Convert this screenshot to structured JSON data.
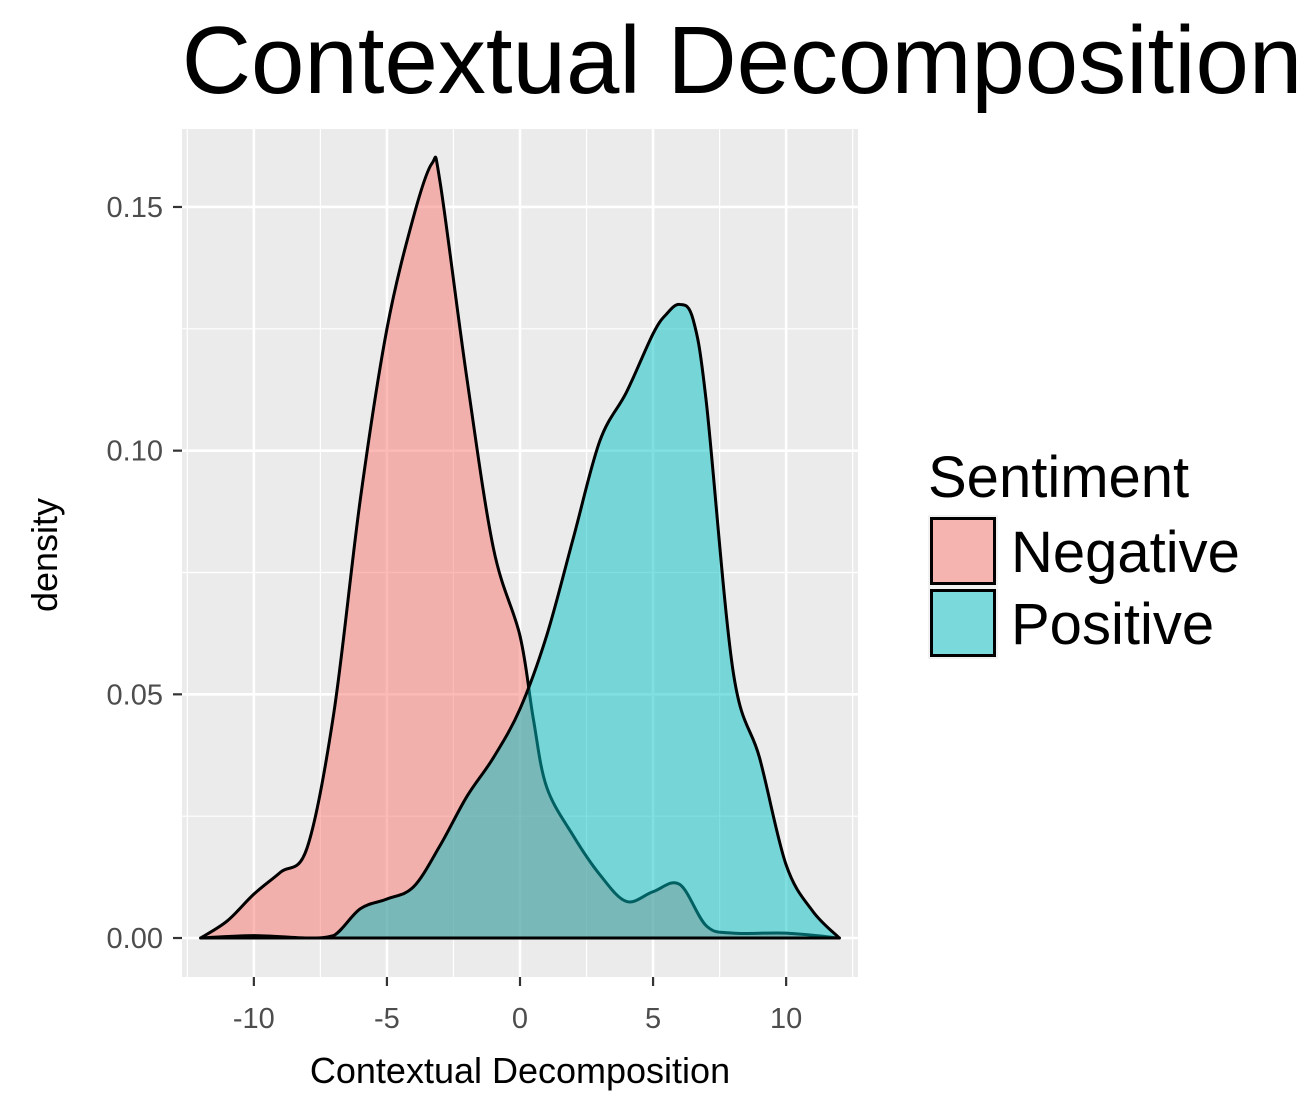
{
  "chart_data": {
    "type": "area",
    "title": "Contextual Decomposition",
    "xlabel": "Contextual Decomposition",
    "ylabel": "density",
    "xlim": [
      -12.7,
      12.7
    ],
    "ylim": [
      -0.008,
      0.166
    ],
    "x_ticks": [
      -10,
      -5,
      0,
      5,
      10
    ],
    "x_tick_labels": [
      "-10",
      "-5",
      "0",
      "5",
      "10"
    ],
    "y_ticks": [
      0.0,
      0.05,
      0.1,
      0.15
    ],
    "y_tick_labels": [
      "0.00",
      "0.05",
      "0.10",
      "0.15"
    ],
    "grid": true,
    "legend": {
      "title": "Sentiment",
      "position": "right"
    },
    "series": [
      {
        "name": "Negative",
        "color": "#F8766D",
        "x": [
          -12,
          -11,
          -10,
          -9,
          -8,
          -7,
          -6,
          -5,
          -4,
          -3.3,
          -3,
          -2,
          -1,
          0,
          0.5,
          1,
          2,
          3,
          4,
          5,
          6,
          7,
          8,
          10,
          12
        ],
        "y": [
          0.0,
          0.0035,
          0.009,
          0.0135,
          0.0185,
          0.046,
          0.09,
          0.125,
          0.148,
          0.159,
          0.155,
          0.115,
          0.08,
          0.062,
          0.045,
          0.031,
          0.021,
          0.013,
          0.0075,
          0.0095,
          0.011,
          0.0025,
          0.001,
          0.001,
          0.0
        ]
      },
      {
        "name": "Positive",
        "color": "#00BFC4",
        "x": [
          -12,
          -10,
          -8,
          -7,
          -6,
          -5,
          -4,
          -3,
          -2,
          -1,
          0,
          1,
          2,
          3,
          4,
          5,
          5.5,
          6,
          6.5,
          7,
          8,
          9,
          10,
          11,
          12
        ],
        "y": [
          0.0,
          0.0005,
          0.0,
          0.0005,
          0.006,
          0.008,
          0.0105,
          0.019,
          0.029,
          0.037,
          0.047,
          0.062,
          0.082,
          0.102,
          0.112,
          0.124,
          0.128,
          0.13,
          0.127,
          0.11,
          0.055,
          0.037,
          0.015,
          0.0055,
          0.0
        ]
      }
    ]
  }
}
